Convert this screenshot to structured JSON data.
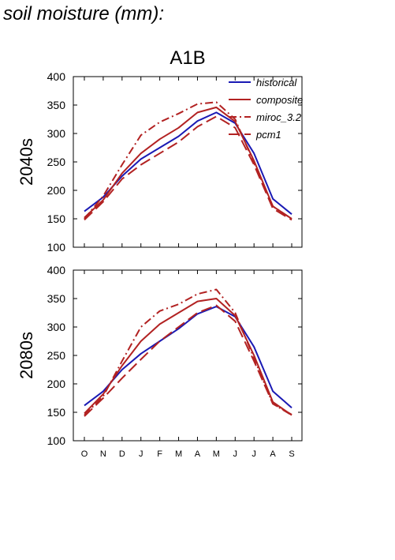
{
  "page_title": "soil moisture (mm):",
  "chart_data": {
    "type": "line",
    "scenario": "A1B",
    "categories": [
      "O",
      "N",
      "D",
      "J",
      "F",
      "M",
      "A",
      "M",
      "J",
      "J",
      "A",
      "S"
    ],
    "ylim": [
      100,
      400
    ],
    "yticks": [
      100,
      150,
      200,
      250,
      300,
      350,
      400
    ],
    "legend": {
      "placement": "top-right"
    },
    "series_styles": [
      {
        "name": "historical",
        "color": "#1a1ab4",
        "dash": ""
      },
      {
        "name": "composite",
        "color": "#b22222",
        "dash": ""
      },
      {
        "name": "miroc_3.2",
        "color": "#b22222",
        "dash": "10 4 2 4"
      },
      {
        "name": "pcm1",
        "color": "#b22222",
        "dash": "14 6"
      }
    ],
    "panels": [
      {
        "label": "2040s",
        "series": [
          {
            "name": "historical",
            "values": [
              163,
              188,
              225,
              255,
              275,
              295,
              322,
              337,
              318,
              265,
              185,
              158
            ]
          },
          {
            "name": "composite",
            "values": [
              152,
              183,
              230,
              265,
              290,
              310,
              337,
              346,
              321,
              252,
              172,
              150
            ]
          },
          {
            "name": "miroc_3.2",
            "values": [
              150,
              190,
              245,
              297,
              320,
              335,
              352,
              355,
              325,
              248,
              172,
              150
            ]
          },
          {
            "name": "pcm1",
            "values": [
              148,
              180,
              220,
              245,
              265,
              285,
              312,
              330,
              310,
              245,
              168,
              148
            ]
          }
        ]
      },
      {
        "label": "2080s",
        "series": [
          {
            "name": "historical",
            "values": [
              162,
              187,
              225,
              253,
              275,
              297,
              323,
              336,
              318,
              265,
              187,
              158
            ]
          },
          {
            "name": "composite",
            "values": [
              148,
              182,
              232,
              275,
              305,
              325,
              345,
              350,
              320,
              250,
              168,
              145
            ]
          },
          {
            "name": "miroc_3.2",
            "values": [
              145,
              178,
              240,
              300,
              328,
              340,
              358,
              366,
              325,
              245,
              165,
              145
            ]
          },
          {
            "name": "pcm1",
            "values": [
              143,
              175,
              210,
              243,
              275,
              300,
              325,
              338,
              310,
              240,
              165,
              146
            ]
          }
        ]
      }
    ]
  }
}
